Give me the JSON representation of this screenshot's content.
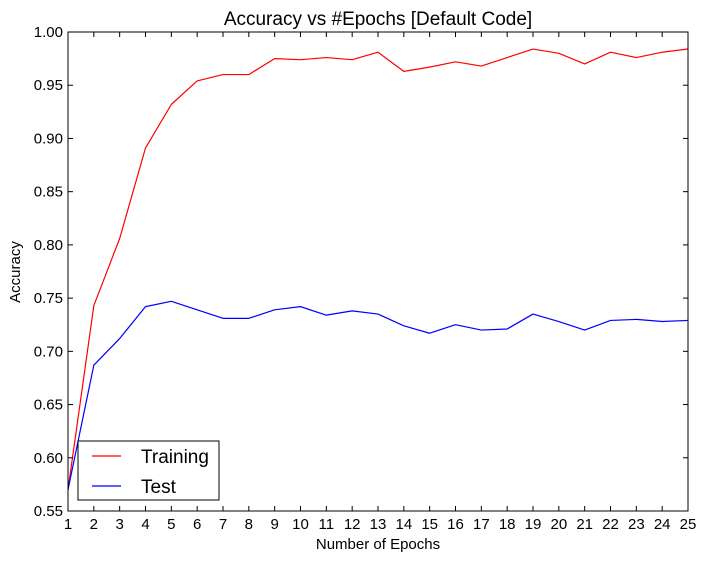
{
  "chart_data": {
    "type": "line",
    "title": "Accuracy vs #Epochs [Default Code]",
    "xlabel": "Number of Epochs",
    "ylabel": "Accuracy",
    "x": [
      1,
      2,
      3,
      4,
      5,
      6,
      7,
      8,
      9,
      10,
      11,
      12,
      13,
      14,
      15,
      16,
      17,
      18,
      19,
      20,
      21,
      22,
      23,
      24,
      25
    ],
    "xlim": [
      1,
      25
    ],
    "ylim": [
      0.55,
      1.0
    ],
    "xticks": [
      "1",
      "2",
      "3",
      "4",
      "5",
      "6",
      "7",
      "8",
      "9",
      "10",
      "11",
      "12",
      "13",
      "14",
      "15",
      "16",
      "17",
      "18",
      "19",
      "20",
      "21",
      "22",
      "23",
      "24",
      "25"
    ],
    "yticks": [
      "0.55",
      "0.60",
      "0.65",
      "0.70",
      "0.75",
      "0.80",
      "0.85",
      "0.90",
      "0.95",
      "1.00"
    ],
    "grid": false,
    "legend_position": "bottom-left",
    "series": [
      {
        "name": "Training",
        "color": "#ff0000",
        "values": [
          0.57,
          0.743,
          0.806,
          0.891,
          0.932,
          0.954,
          0.96,
          0.96,
          0.975,
          0.974,
          0.976,
          0.974,
          0.981,
          0.963,
          0.967,
          0.972,
          0.968,
          0.976,
          0.984,
          0.98,
          0.97,
          0.981,
          0.976,
          0.981,
          0.984
        ]
      },
      {
        "name": "Test",
        "color": "#0000ff",
        "values": [
          0.57,
          0.687,
          0.712,
          0.742,
          0.747,
          0.739,
          0.731,
          0.731,
          0.739,
          0.742,
          0.734,
          0.738,
          0.735,
          0.724,
          0.717,
          0.725,
          0.72,
          0.721,
          0.735,
          0.728,
          0.72,
          0.729,
          0.73,
          0.728,
          0.729
        ]
      }
    ]
  }
}
